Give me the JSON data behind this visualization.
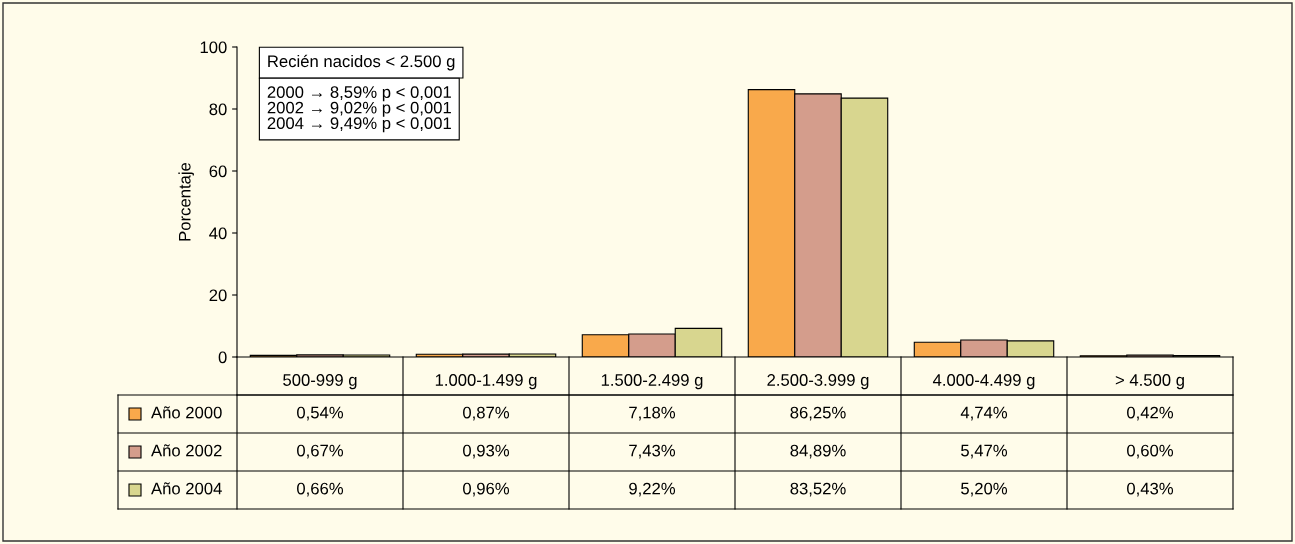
{
  "chart_data": {
    "type": "bar",
    "ylabel": "Porcentaje",
    "categories": [
      "500-999 g",
      "1.000-1.499 g",
      "1.500-2.499 g",
      "2.500-3.999 g",
      "4.000-4.499 g",
      "> 4.500 g"
    ],
    "series": [
      {
        "name": "Año 2000",
        "color": "#f9a94b",
        "values": [
          0.54,
          0.87,
          7.18,
          86.25,
          4.74,
          0.42
        ],
        "value_labels": [
          "0,54%",
          "0,87%",
          "7,18%",
          "86,25%",
          "4,74%",
          "0,42%"
        ]
      },
      {
        "name": "Año 2002",
        "color": "#d49d8c",
        "values": [
          0.67,
          0.93,
          7.43,
          84.89,
          5.47,
          0.6
        ],
        "value_labels": [
          "0,67%",
          "0,93%",
          "7,43%",
          "84,89%",
          "5,47%",
          "0,60%"
        ]
      },
      {
        "name": "Año 2004",
        "color": "#d8d68f",
        "values": [
          0.66,
          0.96,
          9.22,
          83.52,
          5.2,
          0.43
        ],
        "value_labels": [
          "0,66%",
          "0,96%",
          "9,22%",
          "83,52%",
          "5,20%",
          "0,43%"
        ]
      }
    ],
    "ylim": [
      0,
      100
    ],
    "yticks": [
      0,
      20,
      40,
      60,
      80,
      100
    ],
    "grid": false,
    "legend": "bottom left",
    "annotations": [
      "Recién nacidos < 2.500 g",
      "2000 → 8,59% p < 0,001\n2002 → 9,02% p < 0,001\n2004 → 9,49% p < 0,001"
    ]
  }
}
